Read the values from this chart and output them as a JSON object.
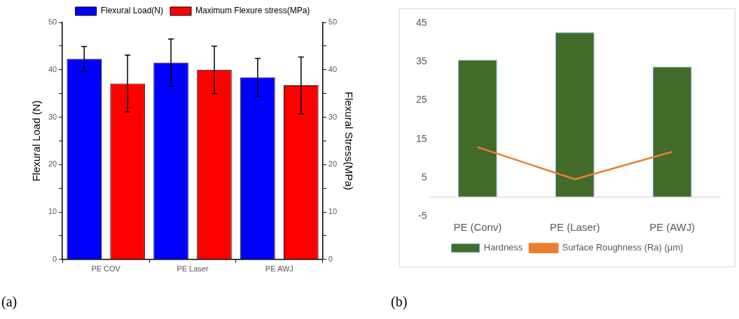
{
  "chart_data": [
    {
      "type": "bar",
      "categories": [
        "PE COV",
        "PE Laser",
        "PE AWJ"
      ],
      "ylabel": "Flexural Load (N)",
      "y2label": "Flexural Stress(MPa)",
      "series": [
        {
          "name": "Flexural Load(N)",
          "color": "#0000ff",
          "values": [
            42.3,
            41.5,
            38.4
          ],
          "errors": [
            2.6,
            5,
            4
          ]
        },
        {
          "name": "Maximum Flexure stress(MPa)",
          "color": "#ff0000",
          "axis": "y2",
          "values": [
            37.1,
            40.0,
            36.7
          ],
          "errors": [
            6,
            5,
            6
          ]
        }
      ],
      "ylim": [
        0,
        50
      ],
      "yticks": [
        0,
        {
          "value": 5,
          "label": null
        },
        10,
        {
          "value": 15,
          "label": null
        },
        20,
        {
          "value": 25,
          "label": null
        },
        30,
        {
          "value": 35,
          "label": null
        },
        40,
        {
          "value": 45,
          "label": null
        },
        50
      ],
      "y2lim": [
        0,
        50
      ],
      "y2ticks": [
        0,
        {
          "value": 5,
          "label": null
        },
        10,
        {
          "value": 15,
          "label": null
        },
        20,
        {
          "value": 25,
          "label": null
        },
        30,
        {
          "value": 35,
          "label": null
        },
        40,
        {
          "value": 45,
          "label": null
        },
        50
      ],
      "grid": false,
      "legend": "top",
      "annotations": [
        "(a)"
      ]
    },
    {
      "type": "bar",
      "categories": [
        "PE (Conv)",
        "PE (Laser)",
        "PE (AWJ)"
      ],
      "series": [
        {
          "name": "Hardness",
          "color": "#436b2a",
          "values": [
            35.5,
            42.6,
            33.7
          ]
        },
        {
          "name": "Surface Roughness (Ra) (µm)",
          "type": "line",
          "color": "#ed7d31",
          "values": [
            12.9,
            4.6,
            11.7
          ]
        }
      ],
      "ylim": [
        -5,
        45
      ],
      "yticks": [
        -5,
        5,
        15,
        25,
        35,
        45
      ],
      "grid": false,
      "legend": "bottom",
      "annotations": [
        "(b)"
      ]
    }
  ]
}
